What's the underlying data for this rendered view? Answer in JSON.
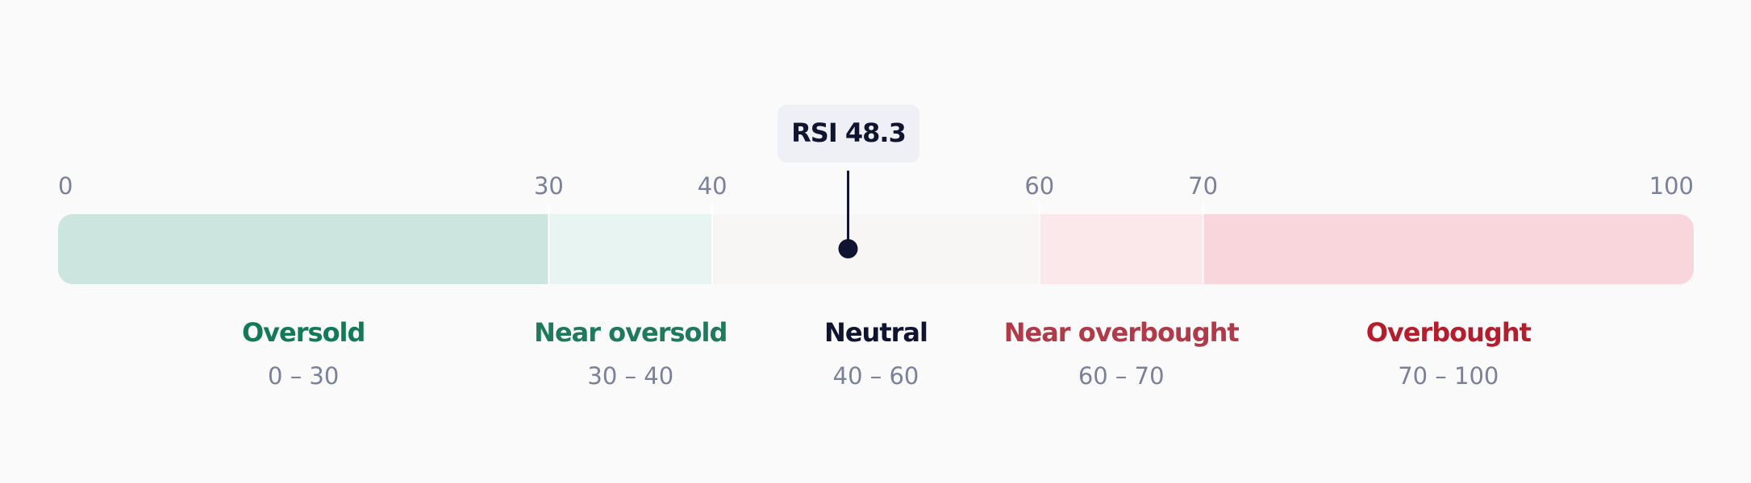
{
  "chart_data": {
    "type": "gauge",
    "xlim": [
      0,
      100
    ],
    "xticks": [
      0,
      30,
      40,
      60,
      70,
      100
    ],
    "zones": [
      {
        "name": "Oversold",
        "range": "0 – 30",
        "from": 0,
        "to": 30,
        "color": "#cce6df",
        "text_color": "#137a56"
      },
      {
        "name": "Near oversold",
        "range": "30 – 40",
        "from": 30,
        "to": 40,
        "color": "#e8f4f1",
        "text_color": "#1f7a5b"
      },
      {
        "name": "Neutral",
        "range": "40 – 60",
        "from": 40,
        "to": 60,
        "color": "#f8f5f5",
        "text_color": "#0f1530"
      },
      {
        "name": "Near overbought",
        "range": "60 – 70",
        "from": 60,
        "to": 70,
        "color": "#fbe8ea",
        "text_color": "#b03a48"
      },
      {
        "name": "Overbought",
        "range": "70 – 100",
        "from": 70,
        "to": 100,
        "color": "#f9d6db",
        "text_color": "#b51d2d"
      }
    ],
    "value": 48.3,
    "value_label": "RSI 48.3"
  }
}
